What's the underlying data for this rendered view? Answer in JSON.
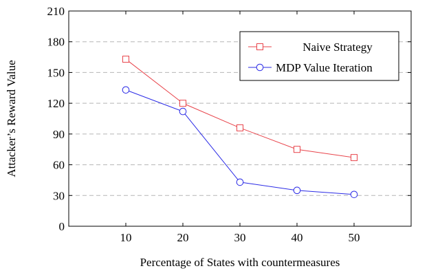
{
  "chart_data": {
    "type": "line",
    "x": [
      10,
      20,
      30,
      40,
      50
    ],
    "xlim": [
      0,
      60
    ],
    "ylim": [
      0,
      210
    ],
    "xticks": [
      10,
      20,
      30,
      40,
      50
    ],
    "yticks": [
      0,
      30,
      60,
      90,
      120,
      150,
      180,
      210
    ],
    "xlabel": "Percentage of States with countermeasures",
    "ylabel": "Attacker’s Reward Value",
    "grid": "horizontal dashed",
    "legend_position": "top-right",
    "series": [
      {
        "name": "Naive Strategy",
        "values": [
          163,
          120,
          96,
          75,
          67
        ],
        "color": "#e8434a",
        "marker": "square"
      },
      {
        "name": "MDP Value Iteration",
        "values": [
          133,
          112,
          43,
          35,
          31
        ],
        "color": "#2a2ae6",
        "marker": "circle"
      }
    ]
  }
}
